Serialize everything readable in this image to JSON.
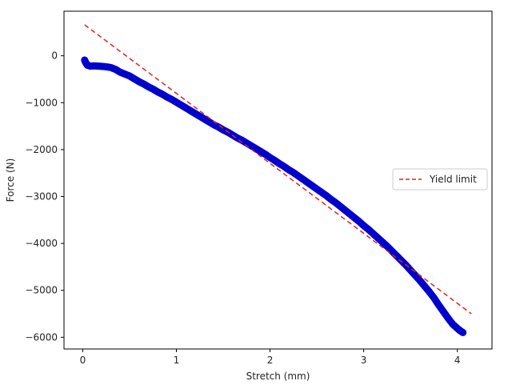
{
  "chart_data": {
    "type": "scatter",
    "title": "",
    "xlabel": "Stretch (mm)",
    "ylabel": "Force (N)",
    "xlim": [
      -0.2,
      4.37
    ],
    "ylim": [
      -6250,
      950
    ],
    "xticks": [
      0,
      1,
      2,
      3,
      4
    ],
    "yticks": [
      0,
      -1000,
      -2000,
      -3000,
      -4000,
      -5000,
      -6000
    ],
    "xtick_labels": [
      "0",
      "1",
      "2",
      "3",
      "4"
    ],
    "ytick_labels": [
      "0",
      "−1000",
      "−2000",
      "−3000",
      "−4000",
      "−5000",
      "−6000"
    ],
    "grid": false,
    "legend_position": "center-right",
    "series": [
      {
        "type": "scatter",
        "color": "#0000cc",
        "points": [
          [
            0.02,
            -90
          ],
          [
            0.03,
            -140
          ],
          [
            0.05,
            -200
          ],
          [
            0.08,
            -220
          ],
          [
            0.12,
            -215
          ],
          [
            0.16,
            -220
          ],
          [
            0.2,
            -225
          ],
          [
            0.25,
            -235
          ],
          [
            0.3,
            -250
          ],
          [
            0.35,
            -290
          ],
          [
            0.4,
            -350
          ],
          [
            0.45,
            -390
          ],
          [
            0.5,
            -430
          ],
          [
            0.55,
            -490
          ],
          [
            0.6,
            -550
          ],
          [
            0.65,
            -600
          ],
          [
            0.7,
            -660
          ],
          [
            0.75,
            -710
          ],
          [
            0.8,
            -770
          ],
          [
            0.85,
            -820
          ],
          [
            0.9,
            -880
          ],
          [
            0.95,
            -930
          ],
          [
            1.0,
            -990
          ],
          [
            1.05,
            -1050
          ],
          [
            1.1,
            -1110
          ],
          [
            1.15,
            -1170
          ],
          [
            1.2,
            -1230
          ],
          [
            1.25,
            -1290
          ],
          [
            1.3,
            -1350
          ],
          [
            1.35,
            -1410
          ],
          [
            1.4,
            -1470
          ],
          [
            1.45,
            -1520
          ],
          [
            1.5,
            -1580
          ],
          [
            1.55,
            -1630
          ],
          [
            1.6,
            -1690
          ],
          [
            1.65,
            -1750
          ],
          [
            1.7,
            -1800
          ],
          [
            1.75,
            -1860
          ],
          [
            1.8,
            -1920
          ],
          [
            1.85,
            -1980
          ],
          [
            1.9,
            -2040
          ],
          [
            1.95,
            -2100
          ],
          [
            2.0,
            -2170
          ],
          [
            2.05,
            -2230
          ],
          [
            2.1,
            -2300
          ],
          [
            2.15,
            -2360
          ],
          [
            2.2,
            -2430
          ],
          [
            2.25,
            -2490
          ],
          [
            2.3,
            -2560
          ],
          [
            2.35,
            -2630
          ],
          [
            2.4,
            -2700
          ],
          [
            2.45,
            -2770
          ],
          [
            2.5,
            -2840
          ],
          [
            2.55,
            -2910
          ],
          [
            2.6,
            -2980
          ],
          [
            2.65,
            -3060
          ],
          [
            2.7,
            -3130
          ],
          [
            2.75,
            -3210
          ],
          [
            2.8,
            -3290
          ],
          [
            2.85,
            -3370
          ],
          [
            2.9,
            -3450
          ],
          [
            2.95,
            -3530
          ],
          [
            3.0,
            -3620
          ],
          [
            3.05,
            -3700
          ],
          [
            3.1,
            -3790
          ],
          [
            3.15,
            -3880
          ],
          [
            3.2,
            -3970
          ],
          [
            3.25,
            -4060
          ],
          [
            3.3,
            -4160
          ],
          [
            3.35,
            -4260
          ],
          [
            3.4,
            -4360
          ],
          [
            3.45,
            -4460
          ],
          [
            3.5,
            -4570
          ],
          [
            3.55,
            -4680
          ],
          [
            3.6,
            -4790
          ],
          [
            3.65,
            -4910
          ],
          [
            3.7,
            -5030
          ],
          [
            3.75,
            -5160
          ],
          [
            3.8,
            -5310
          ],
          [
            3.85,
            -5450
          ],
          [
            3.9,
            -5590
          ],
          [
            3.95,
            -5720
          ],
          [
            4.0,
            -5810
          ],
          [
            4.03,
            -5860
          ],
          [
            4.06,
            -5900
          ]
        ]
      },
      {
        "name": "Yield limit",
        "type": "line",
        "style": "dashed",
        "color": "#dd2222",
        "points": [
          [
            0.02,
            660
          ],
          [
            4.15,
            -5500
          ]
        ]
      }
    ]
  }
}
